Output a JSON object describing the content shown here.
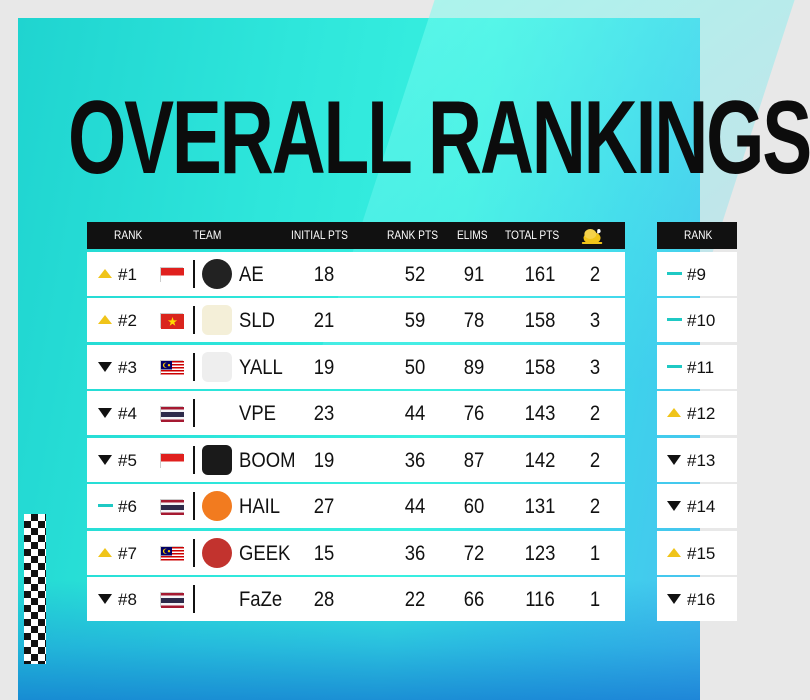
{
  "title": "OVERALL RANKINGS",
  "colors": {
    "up": "#f0c419",
    "down": "#111111",
    "same": "#1fc9c4"
  },
  "headers": {
    "rank": "RANK",
    "team": "TEAM",
    "initial_pts": "INITIAL PTS",
    "rank_pts": "RANK PTS",
    "elims": "ELIMS",
    "total_pts": "TOTAL PTS",
    "chicken_icon": "chicken-dinner-icon"
  },
  "rows": [
    {
      "trend": "up",
      "rank": "#1",
      "flag": "indonesia",
      "team": "AE",
      "initial": "18",
      "rank_pts": "52",
      "elims": "91",
      "total": "161",
      "chickens": "2"
    },
    {
      "trend": "up",
      "rank": "#2",
      "flag": "vietnam",
      "team": "SLD",
      "initial": "21",
      "rank_pts": "59",
      "elims": "78",
      "total": "158",
      "chickens": "3"
    },
    {
      "trend": "down",
      "rank": "#3",
      "flag": "malaysia",
      "team": "YALL",
      "initial": "19",
      "rank_pts": "50",
      "elims": "89",
      "total": "158",
      "chickens": "3"
    },
    {
      "trend": "down",
      "rank": "#4",
      "flag": "thailand",
      "team": "VPE",
      "initial": "23",
      "rank_pts": "44",
      "elims": "76",
      "total": "143",
      "chickens": "2"
    },
    {
      "trend": "down",
      "rank": "#5",
      "flag": "indonesia",
      "team": "BOOM",
      "initial": "19",
      "rank_pts": "36",
      "elims": "87",
      "total": "142",
      "chickens": "2"
    },
    {
      "trend": "same",
      "rank": "#6",
      "flag": "thailand",
      "team": "HAIL",
      "initial": "27",
      "rank_pts": "44",
      "elims": "60",
      "total": "131",
      "chickens": "2"
    },
    {
      "trend": "up",
      "rank": "#7",
      "flag": "malaysia",
      "team": "GEEK",
      "initial": "15",
      "rank_pts": "36",
      "elims": "72",
      "total": "123",
      "chickens": "1"
    },
    {
      "trend": "down",
      "rank": "#8",
      "flag": "thailand",
      "team": "FaZe",
      "initial": "28",
      "rank_pts": "22",
      "elims": "66",
      "total": "116",
      "chickens": "1"
    }
  ],
  "headers2": {
    "rank": "RANK"
  },
  "rows2": [
    {
      "trend": "same",
      "rank": "#9"
    },
    {
      "trend": "same",
      "rank": "#10"
    },
    {
      "trend": "same",
      "rank": "#11"
    },
    {
      "trend": "up",
      "rank": "#12"
    },
    {
      "trend": "down",
      "rank": "#13"
    },
    {
      "trend": "down",
      "rank": "#14"
    },
    {
      "trend": "up",
      "rank": "#15"
    },
    {
      "trend": "down",
      "rank": "#16"
    }
  ]
}
